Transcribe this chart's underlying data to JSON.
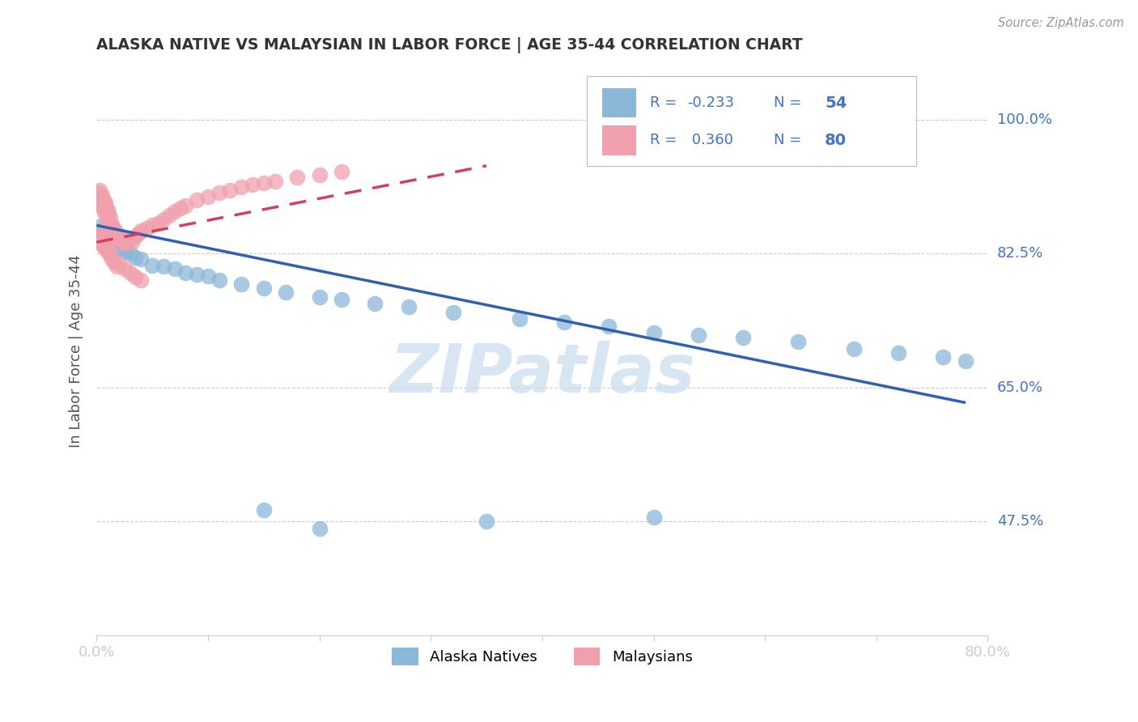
{
  "title": "ALASKA NATIVE VS MALAYSIAN IN LABOR FORCE | AGE 35-44 CORRELATION CHART",
  "source": "Source: ZipAtlas.com",
  "ylabel": "In Labor Force | Age 35-44",
  "xlim": [
    0.0,
    0.8
  ],
  "ylim": [
    0.325,
    1.07
  ],
  "ytick_vals": [
    0.475,
    0.65,
    0.825,
    1.0
  ],
  "ytick_labels": [
    "47.5%",
    "65.0%",
    "82.5%",
    "100.0%"
  ],
  "xtick_vals": [
    0.0,
    0.1,
    0.2,
    0.3,
    0.4,
    0.5,
    0.6,
    0.7,
    0.8
  ],
  "xtick_labels": [
    "0.0%",
    "",
    "",
    "",
    "",
    "",
    "",
    "",
    "80.0%"
  ],
  "alaska_R": -0.233,
  "alaska_N": 54,
  "malay_R": 0.36,
  "malay_N": 80,
  "alaska_color": "#8BB8D8",
  "malay_color": "#F0A0AC",
  "alaska_line_color": "#3060B0",
  "malay_line_color": "#D04060",
  "label_color": "#4472C4",
  "grid_color": "#CCCCCC",
  "watermark_color": "#C8DCF0",
  "alaska_x": [
    0.002,
    0.003,
    0.004,
    0.005,
    0.006,
    0.007,
    0.008,
    0.009,
    0.01,
    0.011,
    0.012,
    0.013,
    0.014,
    0.015,
    0.016,
    0.017,
    0.018,
    0.02,
    0.022,
    0.024,
    0.026,
    0.03,
    0.035,
    0.04,
    0.05,
    0.06,
    0.07,
    0.08,
    0.09,
    0.1,
    0.11,
    0.13,
    0.15,
    0.17,
    0.2,
    0.22,
    0.25,
    0.28,
    0.32,
    0.38,
    0.42,
    0.46,
    0.5,
    0.54,
    0.58,
    0.63,
    0.68,
    0.72,
    0.76,
    0.78,
    0.15,
    0.2,
    0.35,
    0.5
  ],
  "alaska_y": [
    0.845,
    0.86,
    0.84,
    0.855,
    0.838,
    0.848,
    0.852,
    0.843,
    0.85,
    0.838,
    0.845,
    0.84,
    0.847,
    0.835,
    0.842,
    0.836,
    0.84,
    0.838,
    0.832,
    0.83,
    0.828,
    0.825,
    0.82,
    0.818,
    0.81,
    0.808,
    0.805,
    0.8,
    0.798,
    0.796,
    0.79,
    0.785,
    0.78,
    0.775,
    0.768,
    0.765,
    0.76,
    0.755,
    0.748,
    0.74,
    0.735,
    0.73,
    0.722,
    0.718,
    0.715,
    0.71,
    0.7,
    0.695,
    0.69,
    0.685,
    0.49,
    0.465,
    0.475,
    0.48
  ],
  "malay_x": [
    0.001,
    0.002,
    0.002,
    0.003,
    0.003,
    0.004,
    0.004,
    0.005,
    0.005,
    0.006,
    0.006,
    0.007,
    0.007,
    0.008,
    0.008,
    0.009,
    0.009,
    0.01,
    0.01,
    0.011,
    0.011,
    0.012,
    0.012,
    0.013,
    0.013,
    0.014,
    0.015,
    0.016,
    0.017,
    0.018,
    0.019,
    0.02,
    0.022,
    0.024,
    0.026,
    0.028,
    0.03,
    0.032,
    0.035,
    0.038,
    0.04,
    0.045,
    0.05,
    0.055,
    0.06,
    0.065,
    0.07,
    0.075,
    0.08,
    0.09,
    0.1,
    0.11,
    0.12,
    0.13,
    0.14,
    0.15,
    0.16,
    0.18,
    0.2,
    0.22,
    0.001,
    0.002,
    0.003,
    0.004,
    0.005,
    0.006,
    0.007,
    0.008,
    0.009,
    0.01,
    0.011,
    0.012,
    0.013,
    0.015,
    0.018,
    0.02,
    0.025,
    0.03,
    0.035,
    0.04
  ],
  "malay_y": [
    0.9,
    0.895,
    0.905,
    0.892,
    0.908,
    0.898,
    0.888,
    0.895,
    0.902,
    0.885,
    0.893,
    0.89,
    0.878,
    0.885,
    0.892,
    0.88,
    0.875,
    0.883,
    0.87,
    0.878,
    0.865,
    0.872,
    0.858,
    0.865,
    0.852,
    0.86,
    0.858,
    0.855,
    0.85,
    0.848,
    0.852,
    0.845,
    0.843,
    0.84,
    0.838,
    0.842,
    0.845,
    0.84,
    0.848,
    0.852,
    0.855,
    0.858,
    0.862,
    0.865,
    0.87,
    0.875,
    0.88,
    0.885,
    0.888,
    0.895,
    0.9,
    0.905,
    0.908,
    0.912,
    0.915,
    0.918,
    0.92,
    0.925,
    0.928,
    0.932,
    0.848,
    0.843,
    0.85,
    0.838,
    0.845,
    0.835,
    0.84,
    0.832,
    0.836,
    0.828,
    0.832,
    0.825,
    0.82,
    0.815,
    0.808,
    0.812,
    0.805,
    0.8,
    0.795,
    0.79
  ],
  "alaska_trend_x0": 0.0,
  "alaska_trend_y0": 0.862,
  "alaska_trend_x1": 0.78,
  "alaska_trend_y1": 0.63,
  "malay_trend_x0": 0.0,
  "malay_trend_y0": 0.84,
  "malay_trend_x1": 0.35,
  "malay_trend_y1": 0.94
}
